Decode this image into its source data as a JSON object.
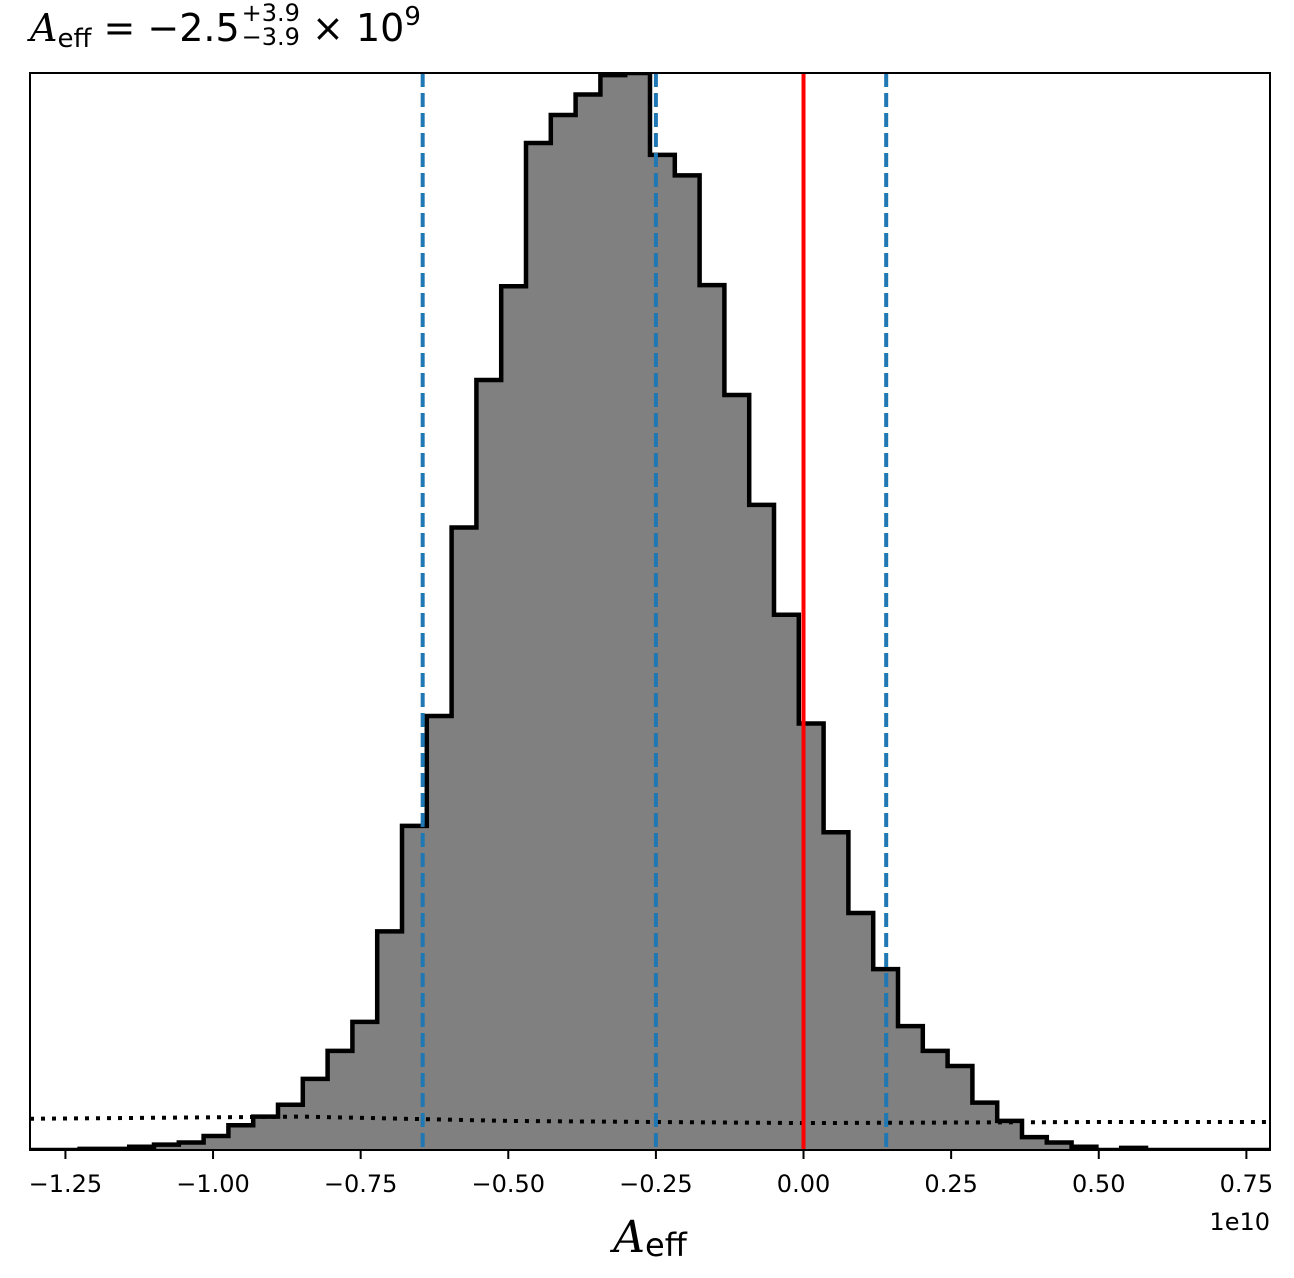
{
  "chart_data": {
    "type": "histogram",
    "title": {
      "symbol": "A",
      "symbol_sub": "eff",
      "median": "= −2.5",
      "err_plus": "+3.9",
      "err_minus": "−3.9",
      "times": "× 10",
      "exponent": "9"
    },
    "xlabel": {
      "symbol": "A",
      "sub": "eff"
    },
    "offset_text": "1e10",
    "x_unit_scale": 10000000000,
    "xlim": [
      -1.31,
      0.79
    ],
    "ylim": [
      0,
      1.0
    ],
    "x_ticks": [
      -1.25,
      -1.0,
      -0.75,
      -0.5,
      -0.25,
      0.0,
      0.25,
      0.5,
      0.75
    ],
    "x_tick_labels": [
      "−1.25",
      "−1.00",
      "−0.75",
      "−0.50",
      "−0.25",
      "0.00",
      "0.25",
      "0.50",
      "0.75"
    ],
    "y_ticks_visible": false,
    "grid": false,
    "histogram": {
      "fill_color": "#808080",
      "edge_color": "#000000",
      "bin_edges": [
        -1.31,
        -1.268,
        -1.226,
        -1.184,
        -1.142,
        -1.1,
        -1.058,
        -1.016,
        -0.974,
        -0.932,
        -0.89,
        -0.848,
        -0.806,
        -0.764,
        -0.722,
        -0.68,
        -0.638,
        -0.596,
        -0.554,
        -0.512,
        -0.47,
        -0.428,
        -0.386,
        -0.344,
        -0.302,
        -0.26,
        -0.218,
        -0.176,
        -0.134,
        -0.092,
        -0.05,
        -0.008,
        0.034,
        0.076,
        0.118,
        0.16,
        0.202,
        0.244,
        0.286,
        0.328,
        0.37,
        0.412,
        0.454,
        0.496,
        0.538,
        0.58,
        0.622,
        0.664,
        0.706,
        0.748,
        0.79
      ],
      "heights": [
        0.0,
        0.0,
        0.001,
        0.001,
        0.003,
        0.005,
        0.007,
        0.013,
        0.023,
        0.031,
        0.042,
        0.066,
        0.092,
        0.119,
        0.203,
        0.301,
        0.403,
        0.578,
        0.715,
        0.802,
        0.935,
        0.961,
        0.98,
        0.998,
        1.0,
        0.924,
        0.905,
        0.803,
        0.701,
        0.599,
        0.497,
        0.396,
        0.295,
        0.22,
        0.168,
        0.115,
        0.092,
        0.078,
        0.044,
        0.027,
        0.012,
        0.007,
        0.003,
        0.0,
        0.002,
        0.0,
        0.0,
        0.0,
        0.0,
        0.0
      ]
    },
    "prior_line": {
      "style": "dotted",
      "color": "#000000",
      "x": [
        -1.31,
        -0.85,
        -0.5,
        0.0,
        0.5,
        0.79
      ],
      "y": [
        0.029,
        0.031,
        0.027,
        0.025,
        0.026,
        0.026
      ]
    },
    "quantile_lines": {
      "style": "dashed",
      "color": "#1f77b4",
      "x": [
        -0.645,
        -0.25,
        0.14
      ]
    },
    "truth_line": {
      "style": "solid",
      "color": "#ff0000",
      "x": 0.0
    }
  }
}
